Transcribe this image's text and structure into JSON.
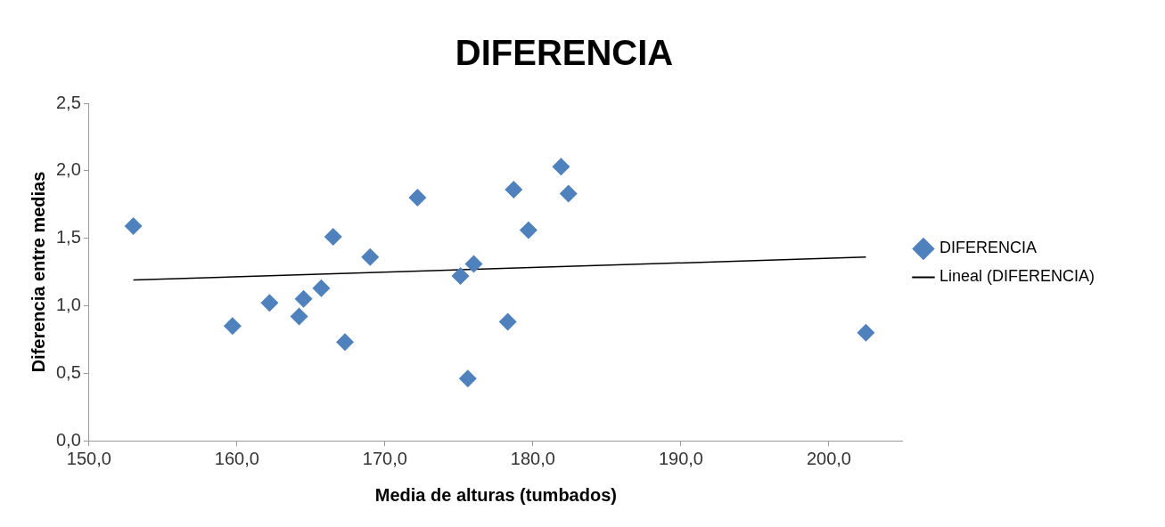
{
  "chart_data": {
    "type": "scatter",
    "title": "DIFERENCIA",
    "xlabel": "Media de alturas (tumbados)",
    "ylabel": "Diferencia entre medias",
    "xlim": [
      150,
      205
    ],
    "xticks": [
      {
        "value": 150,
        "label": "150,0"
      },
      {
        "value": 160,
        "label": "160,0"
      },
      {
        "value": 170,
        "label": "170,0"
      },
      {
        "value": 180,
        "label": "180,0"
      },
      {
        "value": 190,
        "label": "190,0"
      },
      {
        "value": 200,
        "label": "200,0"
      }
    ],
    "ylim": [
      0,
      2.5
    ],
    "yticks": [
      {
        "value": 0,
        "label": "0,0"
      },
      {
        "value": 0.5,
        "label": "0,5"
      },
      {
        "value": 1,
        "label": "1,0"
      },
      {
        "value": 1.5,
        "label": "1,5"
      },
      {
        "value": 2,
        "label": "2,0"
      },
      {
        "value": 2.5,
        "label": "2,5"
      }
    ],
    "grid": false,
    "legend": "right",
    "marker": "diamond",
    "series": [
      {
        "name": "DIFERENCIA",
        "type": "scatter",
        "color": "#4f81bd",
        "x": [
          153.0,
          159.7,
          162.2,
          164.2,
          164.5,
          165.7,
          166.5,
          167.3,
          169.0,
          172.2,
          175.1,
          175.6,
          176.0,
          178.3,
          178.7,
          179.7,
          181.9,
          182.4,
          202.5
        ],
        "values": [
          1.59,
          0.85,
          1.02,
          0.92,
          1.05,
          1.13,
          1.51,
          0.73,
          1.36,
          1.8,
          1.22,
          0.46,
          1.31,
          0.88,
          1.86,
          1.56,
          2.03,
          1.83,
          0.8
        ]
      },
      {
        "name": "Lineal (DIFERENCIA)",
        "type": "line",
        "color": "#000000",
        "marker": "none",
        "line_style": "solid",
        "x": [
          153.0,
          202.5
        ],
        "values": [
          1.19,
          1.36
        ]
      }
    ]
  }
}
